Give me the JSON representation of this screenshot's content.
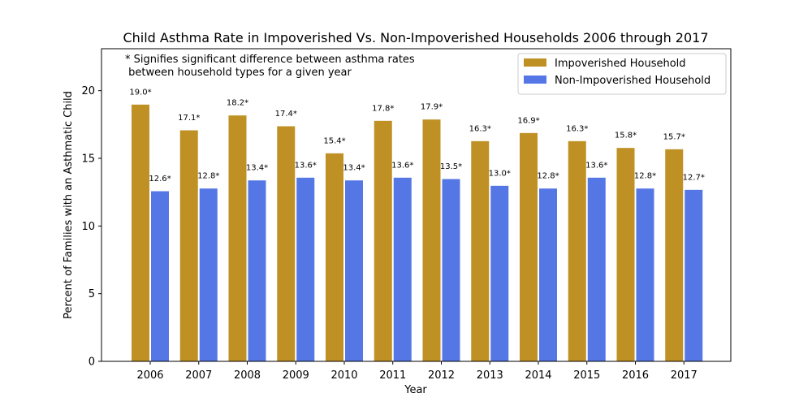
{
  "chart_data": {
    "type": "bar",
    "title": "Child Asthma Rate in Impoverished Vs. Non-Impoverished Households 2006 through 2017",
    "xlabel": "Year",
    "ylabel": "Percent of Families with an Asthmatic Child",
    "ylim": [
      0,
      23.1
    ],
    "yticks": [
      0,
      5,
      10,
      15,
      20
    ],
    "categories": [
      "2006",
      "2007",
      "2008",
      "2009",
      "2010",
      "2011",
      "2012",
      "2013",
      "2014",
      "2015",
      "2016",
      "2017"
    ],
    "series": [
      {
        "name": "Impoverished Household",
        "color": "#bf9124",
        "values": [
          19.0,
          17.1,
          18.2,
          17.4,
          15.4,
          17.8,
          17.9,
          16.3,
          16.9,
          16.3,
          15.8,
          15.7
        ],
        "labels": [
          "19.0*",
          "17.1*",
          "18.2*",
          "17.4*",
          "15.4*",
          "17.8*",
          "17.9*",
          "16.3*",
          "16.9*",
          "16.3*",
          "15.8*",
          "15.7*"
        ]
      },
      {
        "name": "Non-Impoverished Household",
        "color": "#5577e5",
        "values": [
          12.6,
          12.8,
          13.4,
          13.6,
          13.4,
          13.6,
          13.5,
          13.0,
          12.8,
          13.6,
          12.8,
          12.7
        ],
        "labels": [
          "12.6*",
          "12.8*",
          "13.4*",
          "13.6*",
          "13.4*",
          "13.6*",
          "13.5*",
          "13.0*",
          "12.8*",
          "13.6*",
          "12.8*",
          "12.7*"
        ]
      }
    ],
    "annotation": {
      "line1": "* Signifies significant difference between asthma rates",
      "line2": " between household types for a given year"
    },
    "legend_position": "top-right",
    "grid": false
  }
}
